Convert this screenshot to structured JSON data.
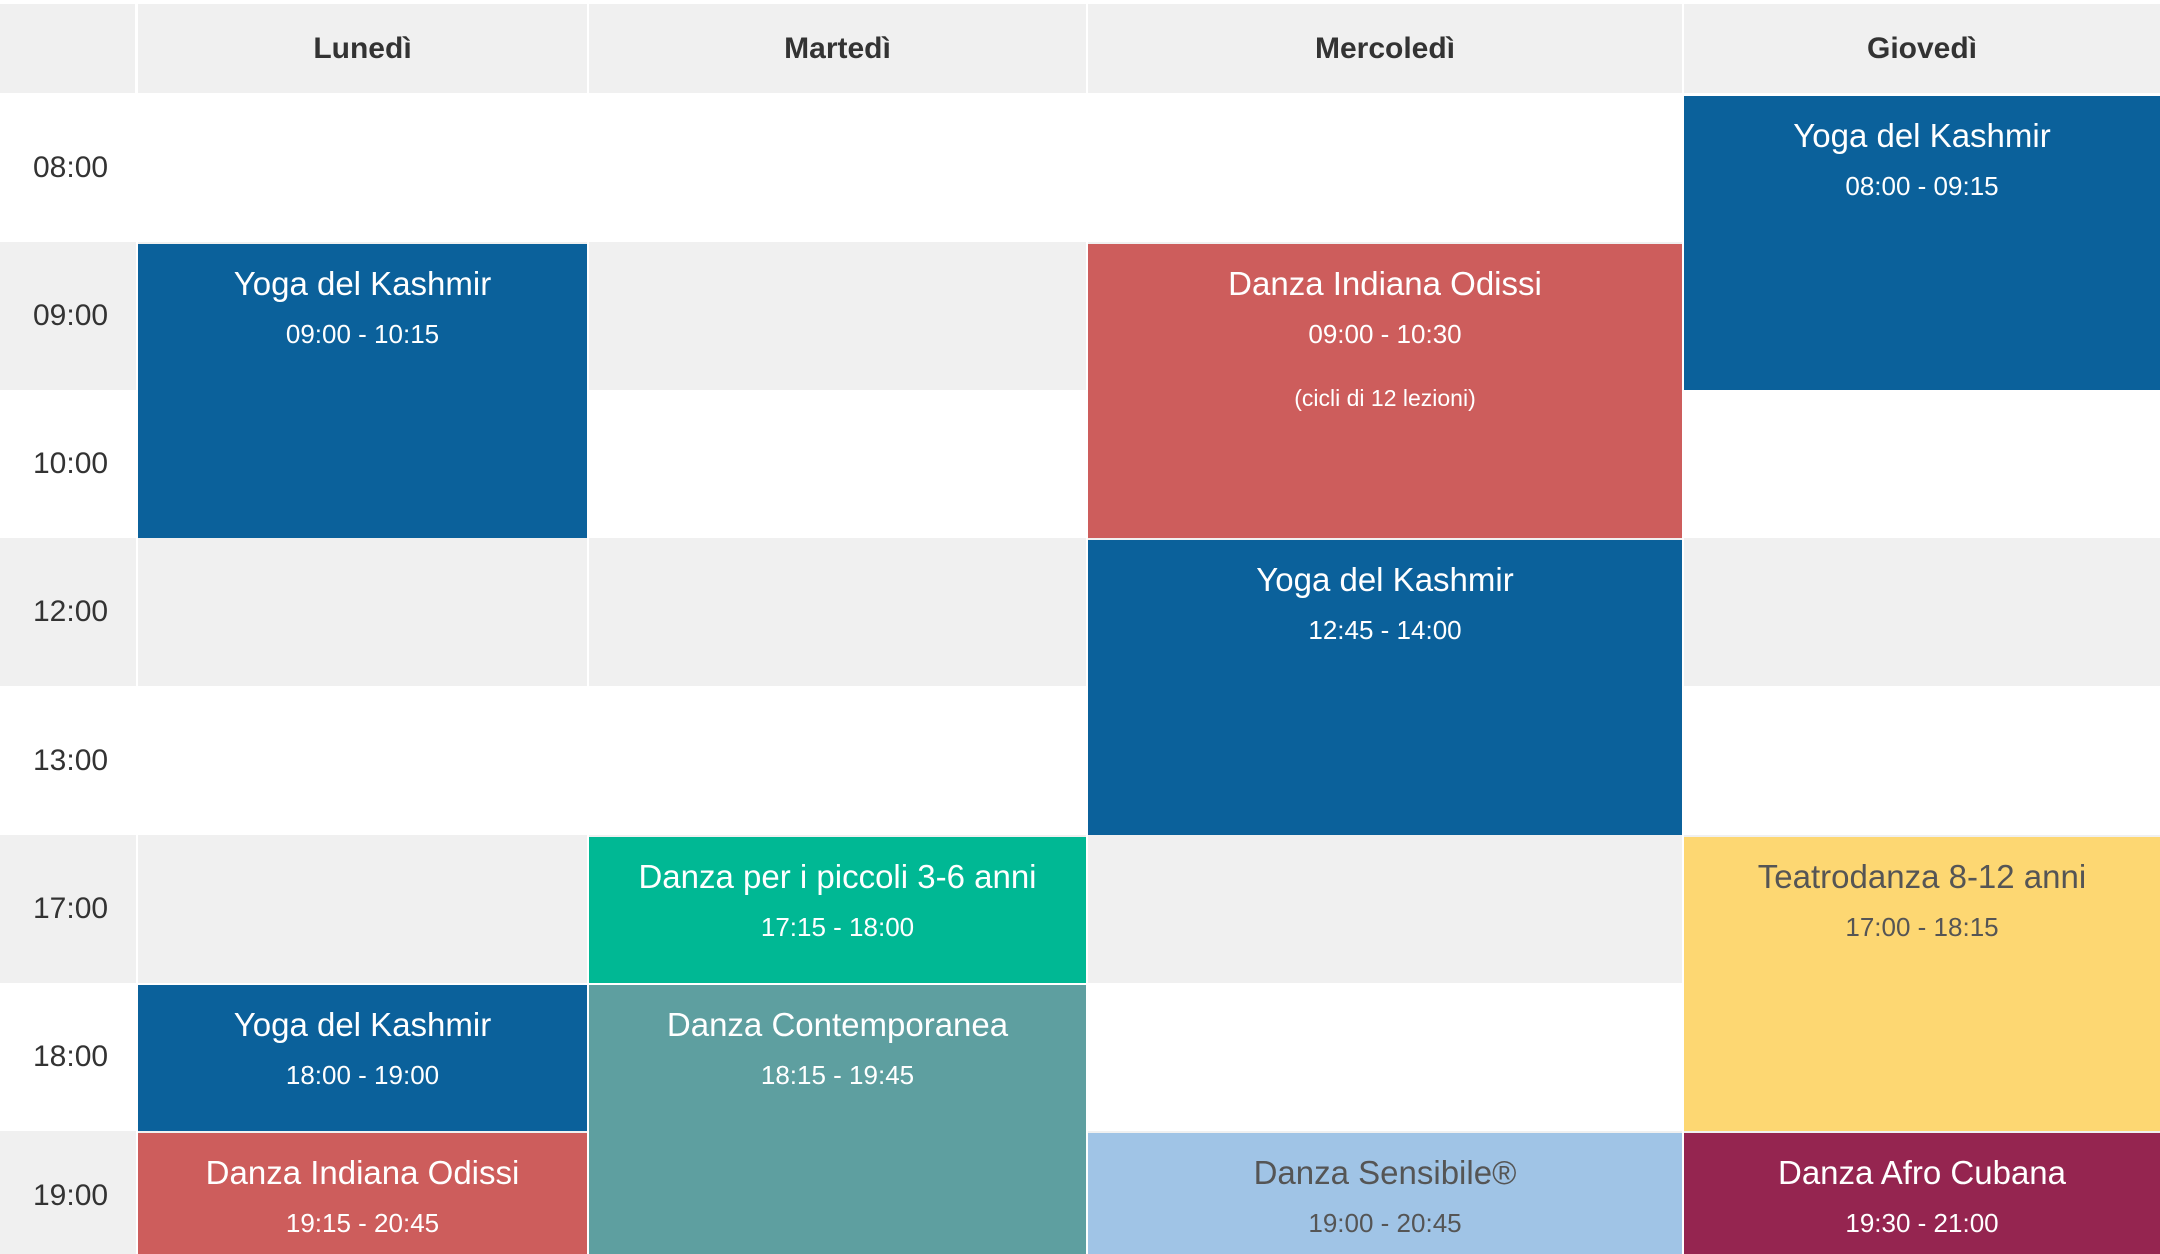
{
  "days": [
    "Lunedì",
    "Martedì",
    "Mercoledì",
    "Giovedì"
  ],
  "times": [
    "08:00",
    "09:00",
    "10:00",
    "12:00",
    "13:00",
    "17:00",
    "18:00",
    "19:00"
  ],
  "colors": {
    "yoga": "#0b619b",
    "odissi": "#cd5d5c",
    "piccoli": "#00b894",
    "contemporanea": "#5e9fa0",
    "teatrodanza": "#fdd772",
    "sensibile": "#a0c4e6",
    "afro": "#952550",
    "header_bg": "#f0f0f0"
  },
  "events": [
    {
      "title": "Yoga del Kashmir",
      "time": "08:00 - 09:15",
      "note": "",
      "day": "Giovedì",
      "color": "#0b619b",
      "theme": "light"
    },
    {
      "title": "Yoga del Kashmir",
      "time": "09:00 - 10:15",
      "note": "",
      "day": "Lunedì",
      "color": "#0b619b",
      "theme": "light"
    },
    {
      "title": "Danza Indiana Odissi",
      "time": "09:00 - 10:30",
      "note": "(cicli di 12 lezioni)",
      "day": "Mercoledì",
      "color": "#cd5d5c",
      "theme": "light"
    },
    {
      "title": "Yoga del Kashmir",
      "time": "12:45 - 14:00",
      "note": "",
      "day": "Mercoledì",
      "color": "#0b619b",
      "theme": "light"
    },
    {
      "title": "Danza per i piccoli 3-6 anni",
      "time": "17:15 - 18:00",
      "note": "",
      "day": "Martedì",
      "color": "#00b894",
      "theme": "light"
    },
    {
      "title": "Teatrodanza 8-12 anni",
      "time": "17:00 - 18:15",
      "note": "",
      "day": "Giovedì",
      "color": "#fdd772",
      "theme": "dark"
    },
    {
      "title": "Yoga del Kashmir",
      "time": "18:00 - 19:00",
      "note": "",
      "day": "Lunedì",
      "color": "#0b619b",
      "theme": "light"
    },
    {
      "title": "Danza Contemporanea",
      "time": "18:15 - 19:45",
      "note": "",
      "day": "Martedì",
      "color": "#5e9fa0",
      "theme": "light"
    },
    {
      "title": "Danza Indiana Odissi",
      "time": "19:15 - 20:45",
      "note": "",
      "day": "Lunedì",
      "color": "#cd5d5c",
      "theme": "light"
    },
    {
      "title": "Danza Sensibile®",
      "time": "19:00 - 20:45",
      "note": "",
      "day": "Mercoledì",
      "color": "#a0c4e6",
      "theme": "dark"
    },
    {
      "title": "Danza Afro Cubana",
      "time": "19:30 - 21:00",
      "note": "",
      "day": "Giovedì",
      "color": "#952550",
      "theme": "light"
    }
  ]
}
